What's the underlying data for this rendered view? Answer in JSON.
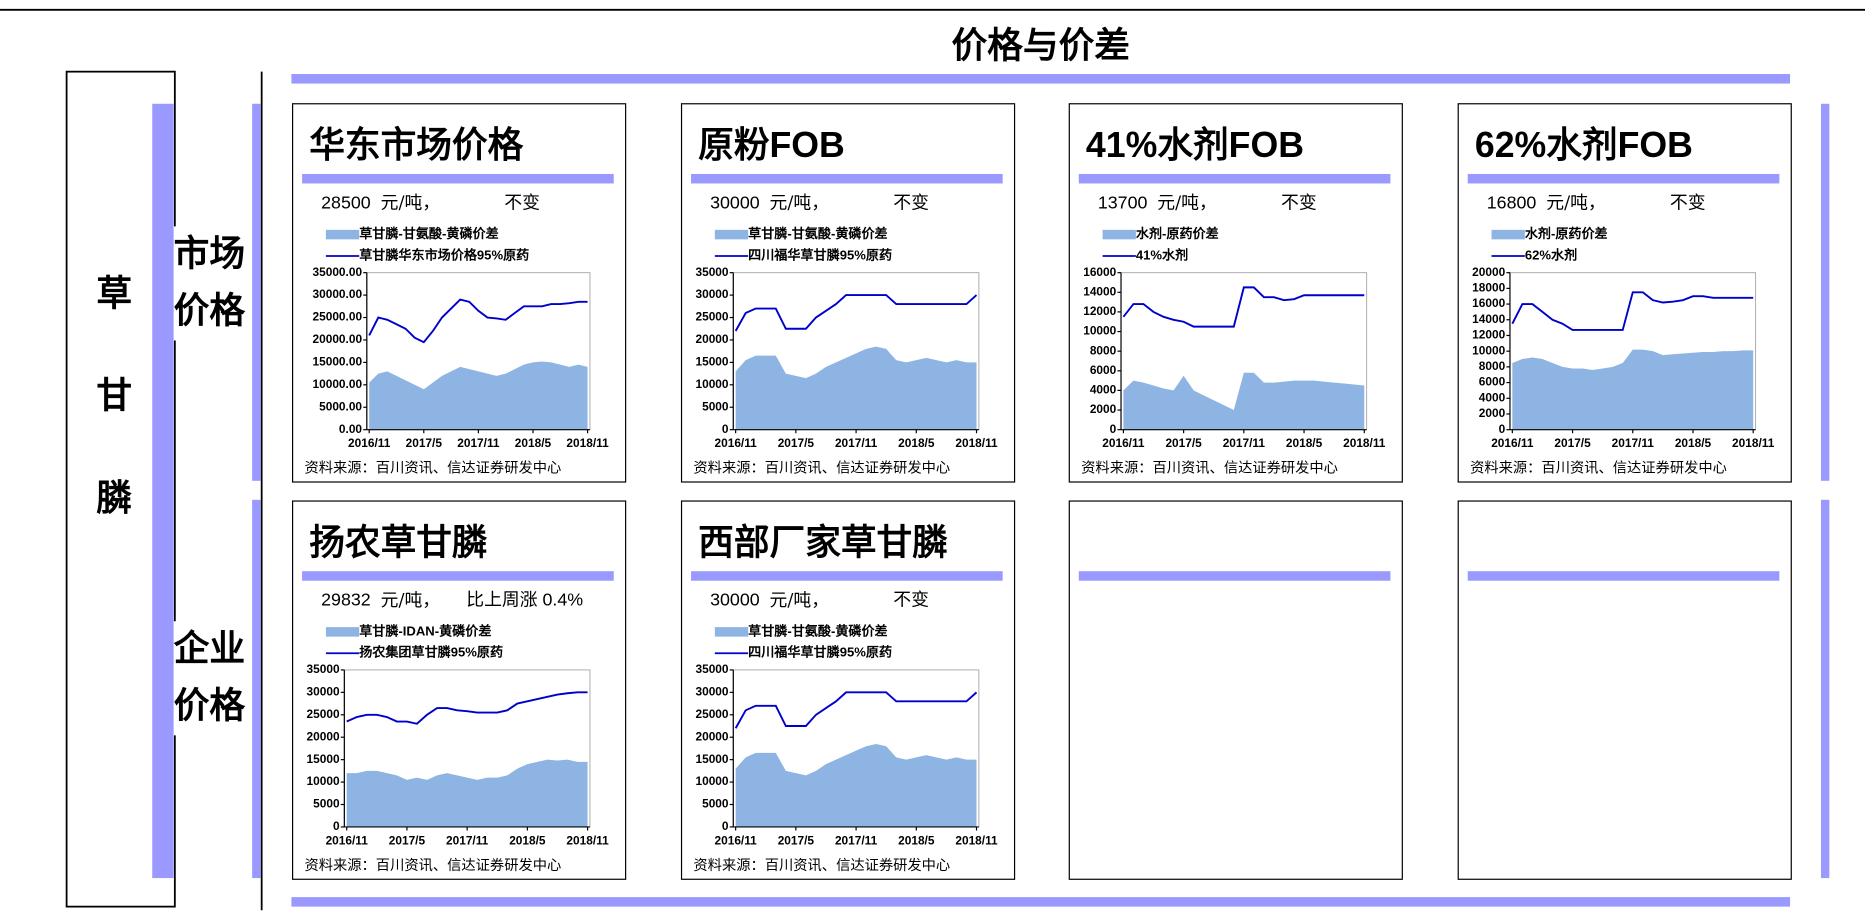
{
  "title": "价格与价差",
  "side": {
    "product": "草甘膦",
    "groups": [
      "市场价格",
      "企业价格"
    ]
  },
  "panels": [
    {
      "heading": "华东市场价格",
      "price": "28500",
      "unit": "元/吨，",
      "change": "不变",
      "source": "资料来源：百川资讯、信达证券研发中心"
    },
    {
      "heading": "原粉FOB",
      "price": "30000",
      "unit": "元/吨，",
      "change": "不变",
      "source": "资料来源：百川资讯、信达证券研发中心"
    },
    {
      "heading": "41%水剂FOB",
      "price": "13700",
      "unit": "元/吨，",
      "change": "不变",
      "source": "资料来源：百川资讯、信达证券研发中心"
    },
    {
      "heading": "62%水剂FOB",
      "price": "16800",
      "unit": "元/吨，",
      "change": "不变",
      "source": "资料来源：百川资讯、信达证券研发中心"
    },
    {
      "heading": "扬农草甘膦",
      "price": "29832",
      "unit": "元/吨，",
      "change": "比上周涨 0.4%",
      "source": "资料来源：百川资讯、信达证券研发中心"
    },
    {
      "heading": "西部厂家草甘膦",
      "price": "30000",
      "unit": "元/吨，",
      "change": "不变",
      "source": "资料来源：百川资讯、信达证券研发中心"
    }
  ],
  "chart_data": [
    {
      "type": "line",
      "x": [
        "2016/11",
        "2016/12",
        "2017/1",
        "2017/2",
        "2017/3",
        "2017/4",
        "2017/5",
        "2017/6",
        "2017/7",
        "2017/8",
        "2017/9",
        "2017/10",
        "2017/11",
        "2017/12",
        "2018/1",
        "2018/2",
        "2018/3",
        "2018/4",
        "2018/5",
        "2018/6",
        "2018/7",
        "2018/8",
        "2018/9",
        "2018/10",
        "2018/11"
      ],
      "xticks": [
        "2016/11",
        "2017/5",
        "2017/11",
        "2018/5",
        "2018/11"
      ],
      "ylim": [
        0,
        35000
      ],
      "yticks": [
        {
          "value": 0,
          "label": "0.00"
        },
        {
          "value": 5000,
          "label": "5000.00"
        },
        {
          "value": 10000,
          "label": "10000.00"
        },
        {
          "value": 15000,
          "label": "15000.00"
        },
        {
          "value": 20000,
          "label": "20000.00"
        },
        {
          "value": 25000,
          "label": "25000.00"
        },
        {
          "value": 30000,
          "label": "30000.00"
        },
        {
          "value": 35000,
          "label": "35000.00"
        }
      ],
      "series": [
        {
          "name": "草甘膦-甘氨酸-黄磷价差",
          "type": "area",
          "color": "#8eb4e3",
          "values": [
            10500,
            12500,
            13000,
            12000,
            11000,
            10000,
            9000,
            10500,
            12000,
            13000,
            14000,
            13500,
            13000,
            12500,
            12000,
            12500,
            13500,
            14500,
            15000,
            15200,
            15000,
            14500,
            14000,
            14500,
            14000
          ]
        },
        {
          "name": "草甘膦华东市场价格95%原药",
          "type": "line",
          "color": "#0000cc",
          "values": [
            21000,
            25000,
            24500,
            23500,
            22500,
            20500,
            19500,
            22000,
            25000,
            27000,
            29000,
            28500,
            26500,
            25000,
            24800,
            24500,
            26000,
            27500,
            27500,
            27500,
            28000,
            28000,
            28200,
            28500,
            28500
          ]
        }
      ]
    },
    {
      "type": "line",
      "x": [
        "2016/11",
        "2016/12",
        "2017/1",
        "2017/2",
        "2017/3",
        "2017/4",
        "2017/5",
        "2017/6",
        "2017/7",
        "2017/8",
        "2017/9",
        "2017/10",
        "2017/11",
        "2017/12",
        "2018/1",
        "2018/2",
        "2018/3",
        "2018/4",
        "2018/5",
        "2018/6",
        "2018/7",
        "2018/8",
        "2018/9",
        "2018/10",
        "2018/11"
      ],
      "xticks": [
        "2016/11",
        "2017/5",
        "2017/11",
        "2018/5",
        "2018/11"
      ],
      "ylim": [
        0,
        35000
      ],
      "yticks": [
        0,
        5000,
        10000,
        15000,
        20000,
        25000,
        30000,
        35000
      ],
      "series": [
        {
          "name": "草甘膦-甘氨酸-黄磷价差",
          "type": "area",
          "color": "#8eb4e3",
          "values": [
            13000,
            15500,
            16500,
            16500,
            16500,
            12500,
            12000,
            11500,
            12500,
            14000,
            15000,
            16000,
            17000,
            18000,
            18500,
            18000,
            15500,
            15000,
            15500,
            16000,
            15500,
            15000,
            15500,
            15000,
            15000
          ]
        },
        {
          "name": "四川福华草甘膦95%原药",
          "type": "line",
          "color": "#0000cc",
          "values": [
            22000,
            26000,
            27000,
            27000,
            27000,
            22500,
            22500,
            22500,
            25000,
            26500,
            28000,
            30000,
            30000,
            30000,
            30000,
            30000,
            28000,
            28000,
            28000,
            28000,
            28000,
            28000,
            28000,
            28000,
            30000
          ]
        }
      ]
    },
    {
      "type": "line",
      "x": [
        "2016/11",
        "2016/12",
        "2017/1",
        "2017/2",
        "2017/3",
        "2017/4",
        "2017/5",
        "2017/6",
        "2017/7",
        "2017/8",
        "2017/9",
        "2017/10",
        "2017/11",
        "2017/12",
        "2018/1",
        "2018/2",
        "2018/3",
        "2018/4",
        "2018/5",
        "2018/6",
        "2018/7",
        "2018/8",
        "2018/9",
        "2018/10",
        "2018/11"
      ],
      "xticks": [
        "2016/11",
        "2017/5",
        "2017/11",
        "2018/5",
        "2018/11"
      ],
      "ylim": [
        0,
        16000
      ],
      "yticks": [
        0,
        2000,
        4000,
        6000,
        8000,
        10000,
        12000,
        14000,
        16000
      ],
      "series": [
        {
          "name": "水剂-原药价差",
          "type": "area",
          "color": "#8eb4e3",
          "values": [
            4000,
            5000,
            4800,
            4500,
            4200,
            4000,
            5500,
            4000,
            3500,
            3000,
            2500,
            2000,
            5800,
            5800,
            4800,
            4800,
            4900,
            5000,
            5000,
            5000,
            4900,
            4800,
            4700,
            4600,
            4500
          ]
        },
        {
          "name": "41%水剂",
          "type": "line",
          "color": "#0000cc",
          "values": [
            11500,
            12800,
            12800,
            12000,
            11500,
            11200,
            11000,
            10500,
            10500,
            10500,
            10500,
            10500,
            14500,
            14500,
            13500,
            13500,
            13200,
            13300,
            13700,
            13700,
            13700,
            13700,
            13700,
            13700,
            13700
          ]
        }
      ]
    },
    {
      "type": "line",
      "x": [
        "2016/11",
        "2016/12",
        "2017/1",
        "2017/2",
        "2017/3",
        "2017/4",
        "2017/5",
        "2017/6",
        "2017/7",
        "2017/8",
        "2017/9",
        "2017/10",
        "2017/11",
        "2017/12",
        "2018/1",
        "2018/2",
        "2018/3",
        "2018/4",
        "2018/5",
        "2018/6",
        "2018/7",
        "2018/8",
        "2018/9",
        "2018/10",
        "2018/11"
      ],
      "xticks": [
        "2016/11",
        "2017/5",
        "2017/11",
        "2018/5",
        "2018/11"
      ],
      "ylim": [
        0,
        20000
      ],
      "yticks": [
        0,
        2000,
        4000,
        6000,
        8000,
        10000,
        12000,
        14000,
        16000,
        18000,
        20000
      ],
      "series": [
        {
          "name": "水剂-原药价差",
          "type": "area",
          "color": "#8eb4e3",
          "values": [
            8500,
            9000,
            9200,
            9000,
            8500,
            8000,
            7800,
            7800,
            7600,
            7800,
            8000,
            8500,
            10200,
            10200,
            10000,
            9500,
            9600,
            9700,
            9800,
            9900,
            9900,
            10000,
            10000,
            10100,
            10100
          ]
        },
        {
          "name": "62%水剂",
          "type": "line",
          "color": "#0000cc",
          "values": [
            13500,
            16000,
            16000,
            15000,
            14000,
            13500,
            12700,
            12700,
            12700,
            12700,
            12700,
            12700,
            17500,
            17500,
            16500,
            16200,
            16300,
            16500,
            17000,
            17000,
            16800,
            16800,
            16800,
            16800,
            16800
          ]
        }
      ]
    },
    {
      "type": "line",
      "x": [
        "2016/11",
        "2016/12",
        "2017/1",
        "2017/2",
        "2017/3",
        "2017/4",
        "2017/5",
        "2017/6",
        "2017/7",
        "2017/8",
        "2017/9",
        "2017/10",
        "2017/11",
        "2017/12",
        "2018/1",
        "2018/2",
        "2018/3",
        "2018/4",
        "2018/5",
        "2018/6",
        "2018/7",
        "2018/8",
        "2018/9",
        "2018/10",
        "2018/11"
      ],
      "xticks": [
        "2016/11",
        "2017/5",
        "2017/11",
        "2018/5",
        "2018/11"
      ],
      "ylim": [
        0,
        35000
      ],
      "yticks": [
        0,
        5000,
        10000,
        15000,
        20000,
        25000,
        30000,
        35000
      ],
      "series": [
        {
          "name": "草甘膦-IDAN-黄磷价差",
          "type": "area",
          "color": "#8eb4e3",
          "values": [
            12000,
            12000,
            12500,
            12500,
            12000,
            11500,
            10500,
            11000,
            10500,
            11500,
            12000,
            11500,
            11000,
            10500,
            11000,
            11000,
            11500,
            13000,
            14000,
            14500,
            15000,
            14800,
            15000,
            14500,
            14500
          ]
        },
        {
          "name": "扬农集团草甘膦95%原药",
          "type": "line",
          "color": "#0000cc",
          "values": [
            23500,
            24500,
            25000,
            25000,
            24500,
            23500,
            23500,
            23000,
            25000,
            26500,
            26500,
            26000,
            25800,
            25500,
            25500,
            25500,
            26000,
            27500,
            28000,
            28500,
            29000,
            29500,
            29800,
            30000,
            30000
          ]
        }
      ]
    },
    {
      "type": "line",
      "x": [
        "2016/11",
        "2016/12",
        "2017/1",
        "2017/2",
        "2017/3",
        "2017/4",
        "2017/5",
        "2017/6",
        "2017/7",
        "2017/8",
        "2017/9",
        "2017/10",
        "2017/11",
        "2017/12",
        "2018/1",
        "2018/2",
        "2018/3",
        "2018/4",
        "2018/5",
        "2018/6",
        "2018/7",
        "2018/8",
        "2018/9",
        "2018/10",
        "2018/11"
      ],
      "xticks": [
        "2016/11",
        "2017/5",
        "2017/11",
        "2018/5",
        "2018/11"
      ],
      "ylim": [
        0,
        35000
      ],
      "yticks": [
        0,
        5000,
        10000,
        15000,
        20000,
        25000,
        30000,
        35000
      ],
      "series": [
        {
          "name": "草甘膦-甘氨酸-黄磷价差",
          "type": "area",
          "color": "#8eb4e3",
          "values": [
            13000,
            15500,
            16500,
            16500,
            16500,
            12500,
            12000,
            11500,
            12500,
            14000,
            15000,
            16000,
            17000,
            18000,
            18500,
            18000,
            15500,
            15000,
            15500,
            16000,
            15500,
            15000,
            15500,
            15000,
            15000
          ]
        },
        {
          "name": "四川福华草甘膦95%原药",
          "type": "line",
          "color": "#0000cc",
          "values": [
            22000,
            26000,
            27000,
            27000,
            27000,
            22500,
            22500,
            22500,
            25000,
            26500,
            28000,
            30000,
            30000,
            30000,
            30000,
            30000,
            28000,
            28000,
            28000,
            28000,
            28000,
            28000,
            28000,
            28000,
            30000
          ]
        }
      ]
    }
  ]
}
